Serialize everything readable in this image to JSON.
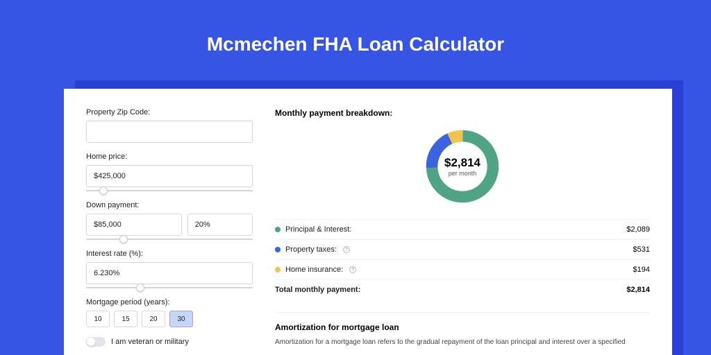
{
  "page": {
    "title": "Mcmechen FHA Loan Calculator",
    "background_color": "#3655e5",
    "shadow_color": "#2a3fd4",
    "card_color": "#ffffff"
  },
  "form": {
    "zip": {
      "label": "Property Zip Code:",
      "value": ""
    },
    "home_price": {
      "label": "Home price:",
      "value": "$425,000",
      "slider_pct": 8
    },
    "down_payment": {
      "label": "Down payment:",
      "amount": "$85,000",
      "percent": "20%",
      "slider_pct": 20
    },
    "interest_rate": {
      "label": "Interest rate (%):",
      "value": "6.230%",
      "slider_pct": 30
    },
    "mortgage_period": {
      "label": "Mortgage period (years):",
      "options": [
        "10",
        "15",
        "20",
        "30"
      ],
      "selected": "30"
    },
    "veteran": {
      "label": "I am veteran or military",
      "checked": false
    }
  },
  "breakdown": {
    "title": "Monthly payment breakdown:",
    "donut": {
      "total_label": "$2,814",
      "sub_label": "per month",
      "stroke_width": 16,
      "segments": [
        {
          "name": "principal_interest",
          "color": "#4fa583",
          "percent": 74.2
        },
        {
          "name": "property_taxes",
          "color": "#3b62e0",
          "percent": 18.9
        },
        {
          "name": "home_insurance",
          "color": "#f3c44b",
          "percent": 6.9
        }
      ]
    },
    "items": [
      {
        "label": "Principal & Interest:",
        "value": "$2,089",
        "color": "#4fa583",
        "info": false
      },
      {
        "label": "Property taxes:",
        "value": "$531",
        "color": "#3b62e0",
        "info": true
      },
      {
        "label": "Home insurance:",
        "value": "$194",
        "color": "#f3c44b",
        "info": true
      }
    ],
    "total": {
      "label": "Total monthly payment:",
      "value": "$2,814"
    }
  },
  "amortization": {
    "title": "Amortization for mortgage loan",
    "text": "Amortization for a mortgage loan refers to the gradual repayment of the loan principal and interest over a specified"
  }
}
